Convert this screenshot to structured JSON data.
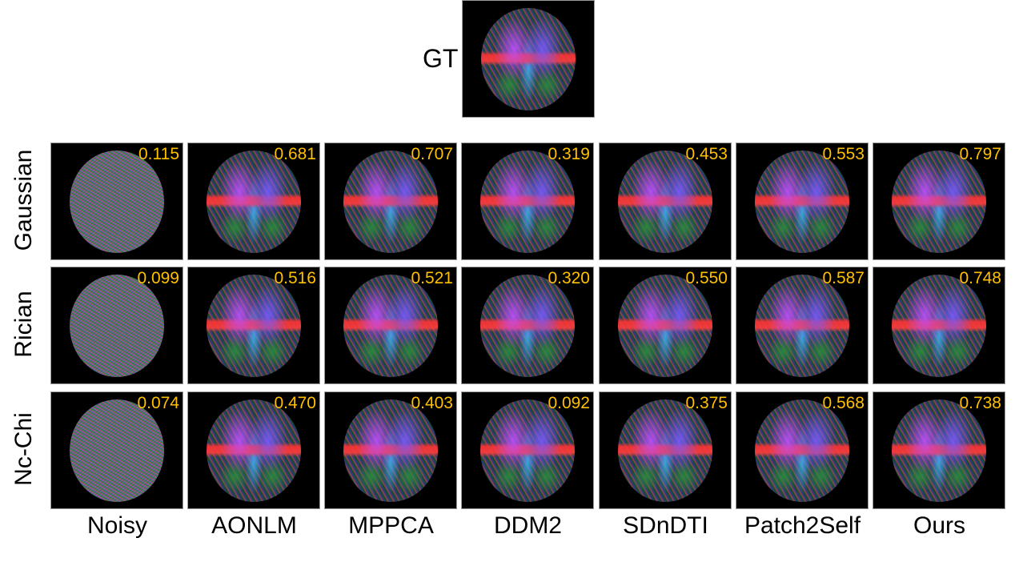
{
  "gt": {
    "label": "GT"
  },
  "rows": [
    {
      "label": "Gaussian",
      "scores": [
        "0.115",
        "0.681",
        "0.707",
        "0.319",
        "0.453",
        "0.553",
        "0.797"
      ]
    },
    {
      "label": "Rician",
      "scores": [
        "0.099",
        "0.516",
        "0.521",
        "0.320",
        "0.550",
        "0.587",
        "0.748"
      ]
    },
    {
      "label": "Nc-Chi",
      "scores": [
        "0.074",
        "0.470",
        "0.403",
        "0.092",
        "0.375",
        "0.568",
        "0.738"
      ]
    }
  ],
  "columns": [
    "Noisy",
    "AONLM",
    "MPPCA",
    "DDM2",
    "SDnDTI",
    "Patch2Self",
    "Ours"
  ],
  "colors": {
    "score": "#FFC000"
  }
}
